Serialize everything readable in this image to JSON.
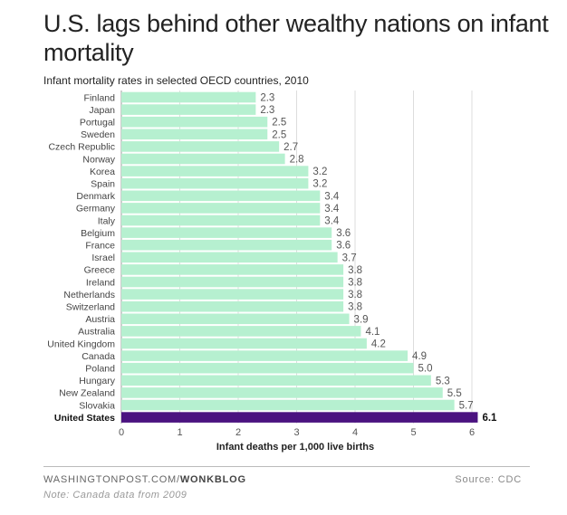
{
  "chart_data": {
    "type": "bar",
    "orientation": "horizontal",
    "title": "U.S. lags behind other wealthy nations on infant mortality",
    "subtitle": "Infant mortality rates in selected OECD countries, 2010",
    "xlabel": "Infant deaths per 1,000 live births",
    "xlim": [
      0,
      6.2
    ],
    "xticks": [
      0,
      1,
      2,
      3,
      4,
      5,
      6
    ],
    "grid": true,
    "bar_color": "#b6f0d0",
    "highlight_color": "#4b1380",
    "highlight_category": "United States",
    "categories": [
      "Finland",
      "Japan",
      "Portugal",
      "Sweden",
      "Czech Republic",
      "Norway",
      "Korea",
      "Spain",
      "Denmark",
      "Germany",
      "Italy",
      "Belgium",
      "France",
      "Israel",
      "Greece",
      "Ireland",
      "Netherlands",
      "Switzerland",
      "Austria",
      "Australia",
      "United Kingdom",
      "Canada",
      "Poland",
      "Hungary",
      "New Zealand",
      "Slovakia",
      "United States"
    ],
    "values": [
      2.3,
      2.3,
      2.5,
      2.5,
      2.7,
      2.8,
      3.2,
      3.2,
      3.4,
      3.4,
      3.4,
      3.6,
      3.6,
      3.7,
      3.8,
      3.8,
      3.8,
      3.8,
      3.9,
      4.1,
      4.2,
      4.9,
      5.0,
      5.3,
      5.5,
      5.7,
      6.1
    ],
    "value_labels": [
      "2.3",
      "2.3",
      "2.5",
      "2.5",
      "2.7",
      "2.8",
      "3.2",
      "3.2",
      "3.4",
      "3.4",
      "3.4",
      "3.6",
      "3.6",
      "3.7",
      "3.8",
      "3.8",
      "3.8",
      "3.8",
      "3.9",
      "4.1",
      "4.2",
      "4.9",
      "5.0",
      "5.3",
      "5.5",
      "5.7",
      "6.1"
    ]
  },
  "footer": {
    "source_prefix": "WASHINGTONPOST.COM/",
    "source_brand": "WONKBLOG",
    "source": "Source: CDC",
    "note": "Note: Canada data from 2009"
  }
}
